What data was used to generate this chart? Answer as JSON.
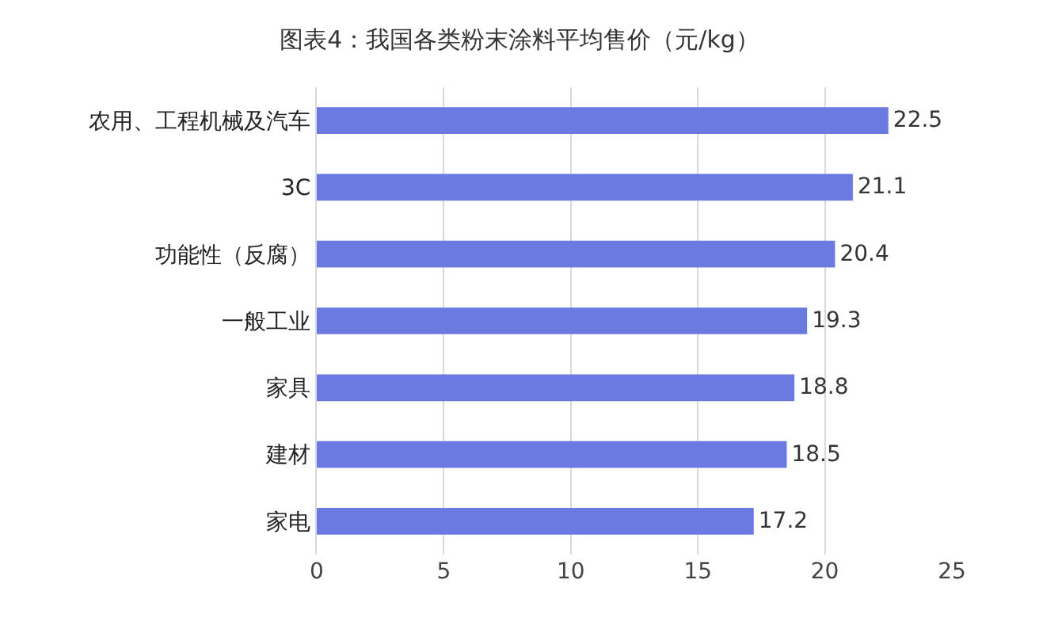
{
  "chart_data": {
    "type": "bar",
    "orientation": "horizontal",
    "title": "图表4：我国各类粉末涂料平均售价（元/kg）",
    "categories": [
      "农用、工程机械及汽车",
      "3C",
      "功能性（反腐）",
      "一般工业",
      "家具",
      "建材",
      "家电"
    ],
    "values": [
      22.5,
      21.1,
      20.4,
      19.3,
      18.8,
      18.5,
      17.2
    ],
    "color": "#6b7ae0",
    "xlim": [
      0,
      25
    ],
    "xticks": [
      0,
      5,
      10,
      15,
      20,
      25
    ],
    "grid": "x",
    "data_labels": true
  }
}
